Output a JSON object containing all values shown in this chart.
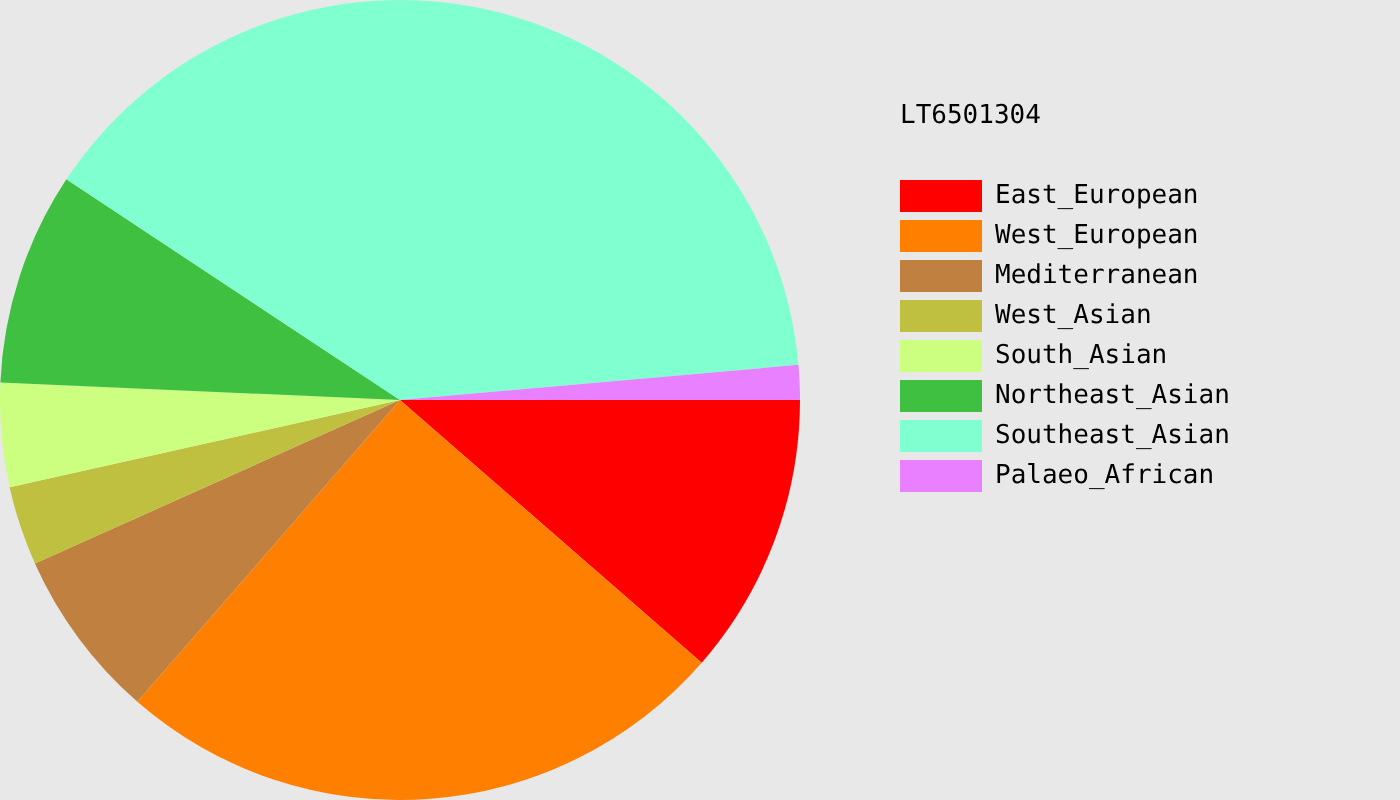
{
  "chart_data": {
    "type": "pie",
    "title": "LT6501304",
    "categories": [
      "East_European",
      "West_European",
      "Mediterranean",
      "West_Asian",
      "South_Asian",
      "Northeast_Asian",
      "Southeast_Asian",
      "Palaeo_African"
    ],
    "values": [
      11.4,
      25.0,
      6.9,
      3.2,
      4.2,
      8.6,
      39.3,
      1.4
    ],
    "colors": [
      "#ff0000",
      "#ff8000",
      "#c08040",
      "#c0c040",
      "#ccff80",
      "#40c040",
      "#80ffd0",
      "#e880ff"
    ],
    "legend": "right"
  }
}
